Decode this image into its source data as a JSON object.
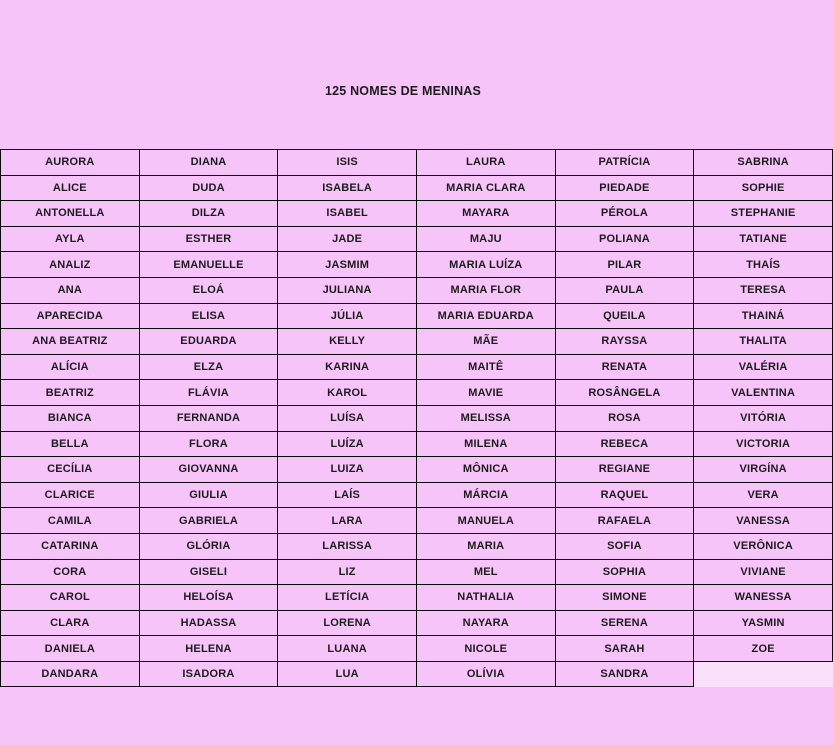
{
  "page": {
    "title": "125 NOMES DE MENINAS",
    "background_color": "#f6c4f8",
    "text_color": "#1c1c1c"
  },
  "table": {
    "columns": 6,
    "rows": 21,
    "border_color": "#0a0a0a",
    "cell_fill": "#f6c4f8",
    "empty_cell_fill": "#fae0fb",
    "names_by_column": [
      [
        "AURORA",
        "ALICE",
        "ANTONELLA",
        "AYLA",
        "ANALIZ",
        "ANA",
        "APARECIDA",
        "ANA BEATRIZ",
        "ALÍCIA",
        "BEATRIZ",
        "BIANCA",
        "BELLA",
        "CECÍLIA",
        "CLARICE",
        "CAMILA",
        "CATARINA",
        "CORA",
        "CAROL",
        "CLARA",
        "DANIELA",
        "DANDARA"
      ],
      [
        "DIANA",
        "DUDA",
        "DILZA",
        "ESTHER",
        "EMANUELLE",
        "ELOÁ",
        "ELISA",
        "EDUARDA",
        "ELZA",
        "FLÁVIA",
        "FERNANDA",
        "FLORA",
        "GIOVANNA",
        "GIULIA",
        "GABRIELA",
        "GLÓRIA",
        "GISELI",
        "HELOÍSA",
        "HADASSA",
        "HELENA",
        "ISADORA"
      ],
      [
        "ISIS",
        "ISABELA",
        "ISABEL",
        "JADE",
        "JASMIM",
        "JULIANA",
        "JÚLIA",
        "KELLY",
        "KARINA",
        "KAROL",
        "LUÍSA",
        "LUÍZA",
        "LUIZA",
        "LAÍS",
        "LARA",
        "LARISSA",
        "LIZ",
        "LETÍCIA",
        "LORENA",
        "LUANA",
        "LUA"
      ],
      [
        "LAURA",
        "MARIA CLARA",
        "MAYARA",
        "MAJU",
        "MARIA LUÍZA",
        "MARIA FLOR",
        "MARIA EDUARDA",
        "MÃE",
        "MAITÊ",
        "MAVIE",
        "MELISSA",
        "MILENA",
        "MÔNICA",
        "MÁRCIA",
        "MANUELA",
        "MARIA",
        "MEL",
        "NATHALIA",
        "NAYARA",
        "NICOLE",
        "OLÍVIA"
      ],
      [
        "PATRÍCIA",
        "PIEDADE",
        "PÉROLA",
        "POLIANA",
        "PILAR",
        "PAULA",
        "QUEILA",
        "RAYSSA",
        "RENATA",
        "ROSÂNGELA",
        "ROSA",
        "REBECA",
        "REGIANE",
        "RAQUEL",
        "RAFAELA",
        "SOFIA",
        "SOPHIA",
        "SIMONE",
        "SERENA",
        "SARAH",
        "SANDRA"
      ],
      [
        "SABRINA",
        "SOPHIE",
        "STEPHANIE",
        "TATIANE",
        "THAÍS",
        "TERESA",
        "THAINÁ",
        "THALITA",
        "VALÉRIA",
        "VALENTINA",
        "VITÓRIA",
        "VICTORIA",
        "VIRGÍNA",
        "VERA",
        "VANESSA",
        "VERÔNICA",
        "VIVIANE",
        "WANESSA",
        "YASMIN",
        "ZOE"
      ]
    ]
  }
}
